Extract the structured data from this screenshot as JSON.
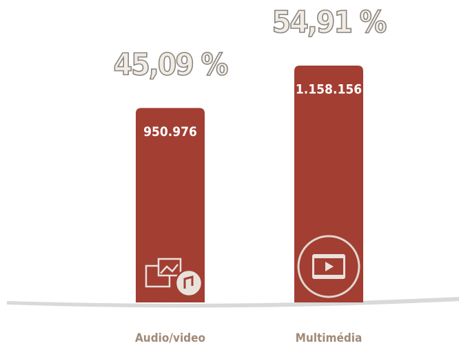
{
  "chart_data": {
    "type": "bar",
    "categories": [
      "Audio/video",
      "Multimédia"
    ],
    "values": [
      950976,
      1158156
    ],
    "value_labels": [
      "950.976",
      "1.158.156"
    ],
    "annotations": [
      "45,09 %",
      "54,91 %"
    ],
    "color": "#a33e33"
  }
}
